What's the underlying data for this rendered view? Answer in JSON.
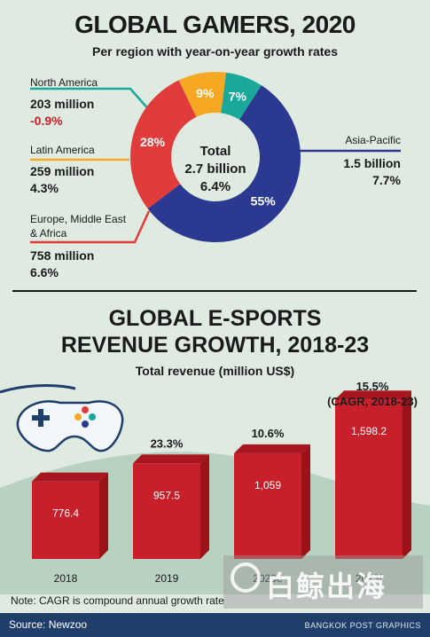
{
  "top": {
    "title": "GLOBAL GAMERS, 2020",
    "subtitle": "Per region with year-on-year growth rates",
    "center": {
      "label": "Total",
      "value": "2.7 billion",
      "growth": "6.4%"
    },
    "regions": [
      {
        "name": "North America",
        "count": "203 million",
        "growth": "-0.9%",
        "growth_color": "#c8202a"
      },
      {
        "name": "Latin America",
        "count": "259 million",
        "growth": "4.3%"
      },
      {
        "name_line1": "Europe, Middle East",
        "name_line2": "& Africa",
        "count": "758 million",
        "growth": "6.6%"
      },
      {
        "name": "Asia-Pacific",
        "count": "1.5 billion",
        "growth": "7.7%"
      }
    ]
  },
  "bottom": {
    "title_line1": "GLOBAL E-SPORTS",
    "title_line2": "REVENUE GROWTH, 2018-23",
    "subtitle": "Total revenue (million US$)",
    "cagr_line1": "15.5%",
    "cagr_line2": "(CAGR, 2018-23)"
  },
  "chart_data": [
    {
      "type": "pie",
      "title": "GLOBAL GAMERS, 2020",
      "categories": [
        "Asia-Pacific",
        "Europe, Middle East & Africa",
        "Latin America",
        "North America"
      ],
      "values": [
        55,
        28,
        9,
        7
      ],
      "labels": [
        "55%",
        "28%",
        "9%",
        "7%"
      ],
      "colors": [
        "#2b3990",
        "#e03c3c",
        "#f7a823",
        "#1aa89a"
      ],
      "donut": true
    },
    {
      "type": "bar",
      "title": "GLOBAL E-SPORTS REVENUE GROWTH, 2018-23",
      "categories": [
        "2018",
        "2019",
        "2020e",
        "2023f"
      ],
      "values": [
        776.4,
        957.5,
        1059,
        1598.2
      ],
      "value_labels": [
        "776.4",
        "957.5",
        "1,059",
        "1,598.2"
      ],
      "growth_labels": [
        "",
        "23.3%",
        "10.6%",
        ""
      ],
      "color": "#c8202a"
    }
  ],
  "colors": {
    "background": "#dfeae1",
    "accent_dark": "#1f3f6a",
    "bar_front": "#c8202a",
    "bar_top": "#a8161f"
  },
  "icons": [
    "game-controller-icon",
    "watermark-logo-icon"
  ],
  "footer": {
    "note": "Note: CAGR is compound annual growth rate",
    "source": "Source: Newzoo",
    "credit": "BANGKOK POST GRAPHICS",
    "watermark": "白鲸出海"
  }
}
